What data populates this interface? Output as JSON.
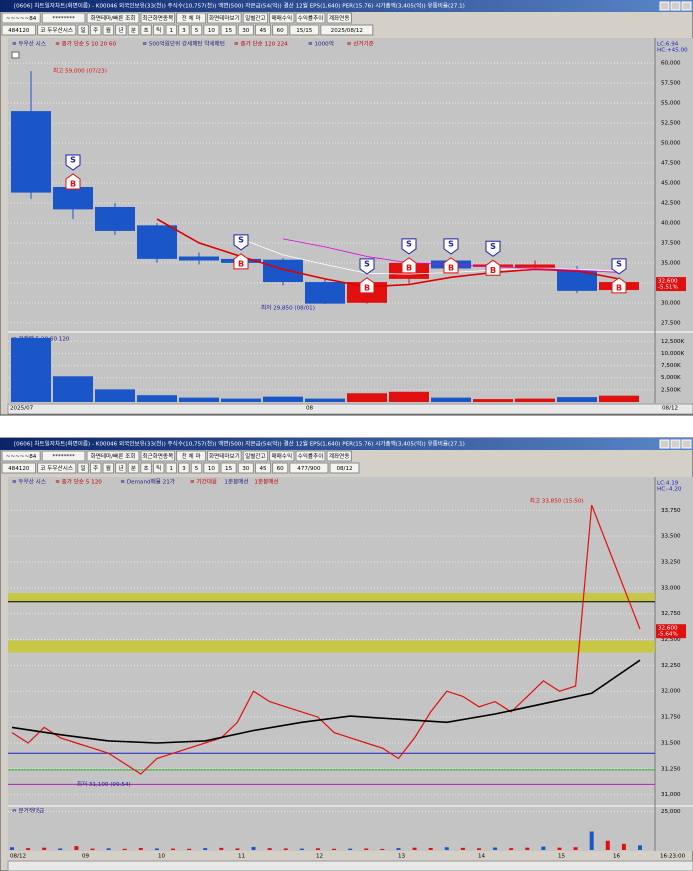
{
  "top": {
    "title": "[0606] 차트일자차트(화면이름) - K00046 외국인보유(33(천)) 주식수(10,757(천)) 액면(500) 자본금(54(억)) 결산 12월 EPS(1,640) PER(15.76) 시가총액(3,405(억)) 유통비율(27.1)",
    "toolbar1": [
      "~~~~~84",
      "********",
      "화면테마/빠른 조회",
      "최근화면종목",
      "전 체 마",
      "화면테마보기",
      "일별간고",
      "매매수익",
      "수익률추이",
      "계좌연동"
    ],
    "toolbar2": [
      "484120",
      "코 두우산시스",
      "일",
      "주",
      "월",
      "년",
      "분",
      "초",
      "틱",
      "1",
      "3",
      "5",
      "10",
      "15",
      "30",
      "45",
      "60",
      "15/15",
      "2025/08/12"
    ],
    "legend": [
      "≡ 두우산 시스",
      "≡ 종가 단순 5 10 20 60",
      "≡ 500억원단위 강세패턴 약세패턴",
      "≡ 종가 단순 120 224",
      "≡ 1000억",
      "≡ 선거기준"
    ],
    "price": {
      "ylim": [
        26600,
        62900
      ],
      "yticks": [
        {
          "value": 27500,
          "label": "27,500"
        },
        {
          "value": 30000,
          "label": "30,000"
        },
        {
          "value": 32500,
          "label": "32,500"
        },
        {
          "value": 35000,
          "label": "35,000"
        },
        {
          "value": 37500,
          "label": "37,500"
        },
        {
          "value": 40000,
          "label": "40,000"
        },
        {
          "value": 42500,
          "label": "42,500"
        },
        {
          "value": 45000,
          "label": "45,000"
        },
        {
          "value": 47500,
          "label": "47,500"
        },
        {
          "value": 50000,
          "label": "50,000"
        },
        {
          "value": 52500,
          "label": "52,500"
        },
        {
          "value": 55000,
          "label": "55,000"
        },
        {
          "value": 57500,
          "label": "57,500"
        },
        {
          "value": 60000,
          "label": "60,000"
        }
      ],
      "open": [
        54000,
        44500,
        42000,
        39700,
        35800,
        35500,
        35400,
        32600,
        30000,
        33000,
        35300,
        34500,
        34400,
        34000,
        31600
      ],
      "high": [
        59000,
        46000,
        42500,
        40000,
        36300,
        36000,
        35600,
        33000,
        33000,
        35500,
        35500,
        35200,
        35300,
        34600,
        33000
      ],
      "low": [
        43000,
        40500,
        38500,
        35000,
        34800,
        34600,
        32200,
        29850,
        29900,
        32400,
        34000,
        34200,
        34200,
        31200,
        31300
      ],
      "close": [
        43800,
        41700,
        39000,
        35500,
        35300,
        35000,
        32600,
        29900,
        32600,
        35000,
        34300,
        34800,
        34800,
        31500,
        32600
      ],
      "ma": [
        {
          "color": "#e00000",
          "values": [
            null,
            null,
            null,
            40500,
            37500,
            35800,
            34200,
            33000,
            32000,
            32300,
            33200,
            33800,
            34200,
            34000,
            33000
          ]
        },
        {
          "color": "#ffffff",
          "values": [
            null,
            null,
            null,
            null,
            null,
            38000,
            36000,
            34800,
            33700,
            33600,
            33800,
            34100,
            34300,
            34200,
            34000
          ]
        },
        {
          "color": "#e000e0",
          "values": [
            null,
            null,
            null,
            null,
            null,
            null,
            38000,
            37000,
            35800,
            35000,
            34800,
            34500,
            34300,
            34100,
            33800
          ]
        }
      ],
      "signal_at": [
        1,
        5,
        8,
        9,
        10,
        11,
        14
      ],
      "signal_labels": [
        "S",
        "B"
      ],
      "high_note": "최고 59,000 (07/23)",
      "low_note": "최저 29,850 (08/01)",
      "axis_head": [
        "LC:6.94",
        "HC:+45.00"
      ],
      "price_tag": "32,600",
      "change_tag": "-5.51%"
    },
    "volume": {
      "legend": "≡ 거래량 5 20 60 120",
      "ylim": [
        0,
        14000
      ],
      "yticks": [
        {
          "value": 2500,
          "label": "2,500K"
        },
        {
          "value": 5000,
          "label": "5,000K"
        },
        {
          "value": 7500,
          "label": "7,500K"
        },
        {
          "value": 10000,
          "label": "10,000K"
        },
        {
          "value": 12500,
          "label": "12,500K"
        }
      ],
      "values": [
        13200,
        5300,
        2600,
        1400,
        900,
        700,
        1100,
        700,
        1800,
        2100,
        900,
        600,
        700,
        1000,
        1300
      ]
    },
    "xlabels": [
      "2025/07",
      "08"
    ],
    "date_end": "08/12"
  },
  "bottom": {
    "title": "[0606] 차트일자차트(화면이름) - K00046 외국인보유(33(천)) 주식수(10,757(천)) 액면(500) 자본금(54(억)) 결산 12월 EPS(1,640) PER(15.76) 시가총액(3,405(억)) 유통비율(27.1)",
    "toolbar1": [
      "~~~~~84",
      "********",
      "화면테마/빠른 조회",
      "최근화면종목",
      "전 체 마",
      "화면테마보기",
      "일별간고",
      "매매수익",
      "수익률추이",
      "계좌연동"
    ],
    "toolbar2": [
      "484120",
      "코 두우산시스",
      "일",
      "주",
      "월",
      "년",
      "분",
      "초",
      "틱",
      "1",
      "3",
      "5",
      "10",
      "15",
      "30",
      "45",
      "60",
      "477/900",
      "08/12"
    ],
    "legend": [
      "≡ 두우산 시스",
      "≡ 종가 단순 5 120",
      "≡ Demand매물 21가",
      "≡ 기간대응",
      "1분봉매선",
      "1분봉매선"
    ],
    "price": {
      "ylim": [
        30900,
        33975
      ],
      "yticks": [
        {
          "value": 31000,
          "label": "31,000"
        },
        {
          "value": 31250,
          "label": "31,250"
        },
        {
          "value": 31500,
          "label": "31,500"
        },
        {
          "value": 31750,
          "label": "31,750"
        },
        {
          "value": 32000,
          "label": "32,000"
        },
        {
          "value": 32250,
          "label": "32,250"
        },
        {
          "value": 32500,
          "label": "32,500"
        },
        {
          "value": 32750,
          "label": "32,750"
        },
        {
          "value": 33000,
          "label": "33,000"
        },
        {
          "value": 33250,
          "label": "33,250"
        },
        {
          "value": 33500,
          "label": "33,500"
        },
        {
          "value": 33750,
          "label": "33,750"
        }
      ],
      "values": [
        31600,
        31500,
        31650,
        31550,
        31500,
        31450,
        31400,
        31300,
        31200,
        31350,
        31400,
        31450,
        31500,
        31550,
        31700,
        32000,
        31900,
        31850,
        31800,
        31750,
        31600,
        31550,
        31500,
        31450,
        31350,
        31550,
        31800,
        32000,
        31950,
        31850,
        31900,
        31800,
        31950,
        32100,
        32000,
        32050,
        33800,
        33400,
        33000,
        32600
      ],
      "ma": [
        31650,
        31580,
        31520,
        31500,
        31520,
        31620,
        31700,
        31760,
        31730,
        31700,
        31780,
        31880,
        31980,
        32300
      ],
      "bands": [
        [
          32870,
          32950
        ],
        [
          32375,
          32490
        ]
      ],
      "levels": [
        {
          "value": 32865,
          "color": "#000000"
        },
        {
          "value": 31400,
          "color": "#2020c0"
        },
        {
          "value": 31240,
          "color": "#30b030"
        },
        {
          "value": 31100,
          "color": "#b020b0"
        }
      ],
      "high_note": "최고 33,850 (15:50)",
      "low_note": "최저 31,100 (09:54)",
      "axis_head": [
        "LC:4.19",
        "HC:-4.20"
      ],
      "price_tag": "32,600",
      "change_tag": "-5.64%"
    },
    "volume": {
      "legend": "≡ 분거래대금",
      "ylim": [
        0,
        26000
      ],
      "yticks": [
        {
          "value": 25000,
          "label": "25,000"
        }
      ],
      "values": [
        1800,
        1200,
        1500,
        1000,
        2500,
        900,
        1100,
        800,
        1300,
        1000,
        900,
        800,
        1200,
        1400,
        1000,
        2000,
        1200,
        1000,
        900,
        1100,
        800,
        900,
        1000,
        700,
        1200,
        1500,
        1300,
        1800,
        1400,
        1100,
        1600,
        1200,
        1500,
        2200,
        1500,
        1800,
        12000,
        6000,
        4000,
        3000
      ]
    },
    "xlabels": [
      "08/12",
      "09",
      "10",
      "11",
      "12",
      "13",
      "14",
      "15",
      "16"
    ],
    "date_end": "16:23:00"
  }
}
